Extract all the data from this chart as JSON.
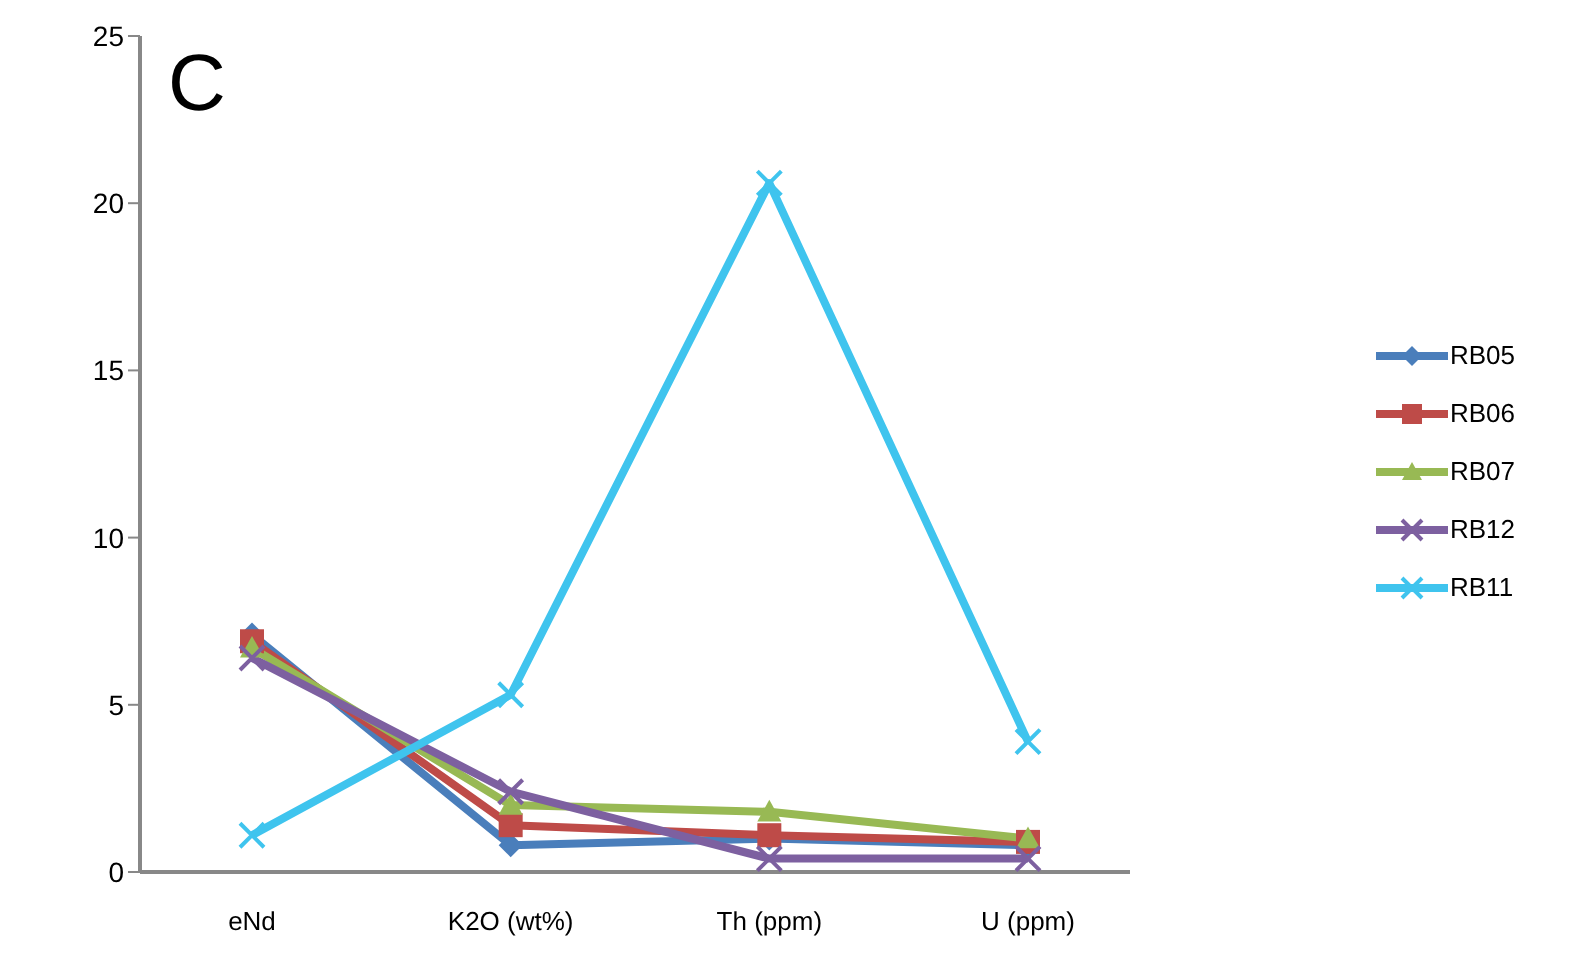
{
  "chart_data": {
    "type": "line",
    "title": "C",
    "categories": [
      "eNd",
      "K2O (wt%)",
      "Th (ppm)",
      "U (ppm)"
    ],
    "series": [
      {
        "name": "RB05",
        "color": "#4a7ebb",
        "marker": "diamond",
        "values": [
          7.1,
          0.8,
          1.0,
          0.8
        ]
      },
      {
        "name": "RB06",
        "color": "#be4b48",
        "marker": "square",
        "values": [
          6.9,
          1.4,
          1.1,
          0.9
        ]
      },
      {
        "name": "RB07",
        "color": "#98b954",
        "marker": "triangle",
        "values": [
          6.7,
          2.0,
          1.8,
          1.0
        ]
      },
      {
        "name": "RB12",
        "color": "#7d60a0",
        "marker": "cross",
        "values": [
          6.4,
          2.4,
          0.4,
          0.4
        ]
      },
      {
        "name": "RB11",
        "color": "#3fc4ee",
        "marker": "cross",
        "values": [
          1.1,
          5.3,
          20.6,
          3.9
        ]
      }
    ],
    "ylim": [
      0,
      25
    ],
    "yticks": [
      0,
      5,
      10,
      15,
      20,
      25
    ],
    "grid": false,
    "legend": "right"
  }
}
